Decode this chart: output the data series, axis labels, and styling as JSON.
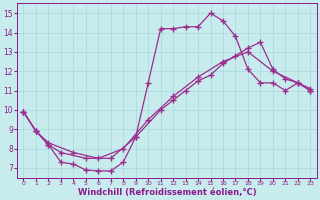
{
  "bg_color": "#c8ecee",
  "line_color": "#9b2d8e",
  "grid_color": "#a8d8da",
  "xlabel": "Windchill (Refroidissement éolien,°C)",
  "xlabel_color": "#8b1a8b",
  "tick_color": "#8b1a8b",
  "ylim": [
    6.5,
    15.5
  ],
  "xlim": [
    -0.5,
    23.5
  ],
  "yticks": [
    7,
    8,
    9,
    10,
    11,
    12,
    13,
    14,
    15
  ],
  "xticks": [
    0,
    1,
    2,
    3,
    4,
    5,
    6,
    7,
    8,
    9,
    10,
    11,
    12,
    13,
    14,
    15,
    16,
    17,
    18,
    19,
    20,
    21,
    22,
    23
  ],
  "line1_x": [
    0,
    1,
    2,
    3,
    4,
    5,
    6,
    7,
    8,
    9,
    10,
    11,
    12,
    13,
    14,
    15,
    16,
    17,
    18,
    19,
    20,
    21,
    22,
    23
  ],
  "line1_y": [
    9.9,
    8.9,
    8.2,
    7.3,
    7.2,
    6.9,
    6.85,
    6.85,
    7.3,
    8.6,
    11.4,
    14.2,
    14.2,
    14.3,
    14.3,
    15.0,
    14.6,
    13.8,
    12.1,
    11.4,
    11.4,
    11.0,
    11.4,
    11.0
  ],
  "line2_x": [
    0,
    1,
    2,
    3,
    5,
    7,
    9,
    11,
    12,
    13,
    14,
    15,
    16,
    17,
    18,
    19,
    20,
    21,
    22,
    23
  ],
  "line2_y": [
    9.9,
    8.9,
    8.2,
    7.8,
    7.5,
    7.5,
    8.6,
    10.0,
    10.5,
    11.0,
    11.5,
    11.8,
    12.4,
    12.8,
    13.2,
    13.5,
    12.1,
    11.6,
    11.4,
    11.1
  ],
  "line3_x": [
    0,
    1,
    2,
    4,
    6,
    8,
    10,
    12,
    14,
    16,
    18,
    20,
    22,
    23
  ],
  "line3_y": [
    9.9,
    8.9,
    8.3,
    7.8,
    7.5,
    8.0,
    9.5,
    10.7,
    11.7,
    12.5,
    13.0,
    12.0,
    11.4,
    11.0
  ],
  "marker": "+",
  "markersize": 4.0,
  "linewidth": 0.9
}
